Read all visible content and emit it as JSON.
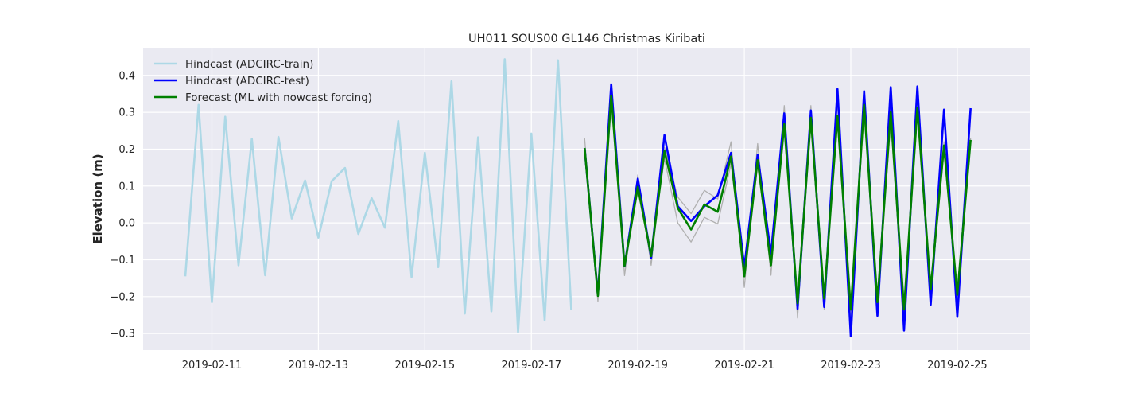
{
  "chart_data": {
    "type": "line",
    "title": "UH011 SOUS00 GL146 Christmas Kiribati",
    "xlabel": "",
    "ylabel": "Elevation (m)",
    "x_unit": "days",
    "xlim": [
      "2019-02-09 17:00",
      "2019-02-26 09:00"
    ],
    "ylim": [
      -0.345,
      0.475
    ],
    "x_tick_labels": [
      "2019-02-11",
      "2019-02-13",
      "2019-02-15",
      "2019-02-17",
      "2019-02-19",
      "2019-02-21",
      "2019-02-23",
      "2019-02-25"
    ],
    "y_ticks": [
      -0.3,
      -0.2,
      -0.1,
      0.0,
      0.1,
      0.2,
      0.3,
      0.4
    ],
    "y_tick_labels": [
      "−0.3",
      "−0.2",
      "−0.1",
      "0.0",
      "0.1",
      "0.2",
      "0.3",
      "0.4"
    ],
    "grid": true,
    "legend_placement": "top-left",
    "background": "#eaeaf2",
    "series": [
      {
        "name": "Hindcast (ADCIRC-train)",
        "color": "#add8e6",
        "x": [
          "2019-02-10 12:00",
          "2019-02-10 18:00",
          "2019-02-11 00:00",
          "2019-02-11 06:00",
          "2019-02-11 12:00",
          "2019-02-11 18:00",
          "2019-02-12 00:00",
          "2019-02-12 06:00",
          "2019-02-12 12:00",
          "2019-02-12 18:00",
          "2019-02-13 00:00",
          "2019-02-13 06:00",
          "2019-02-13 12:00",
          "2019-02-13 18:00",
          "2019-02-14 00:00",
          "2019-02-14 06:00",
          "2019-02-14 12:00",
          "2019-02-14 18:00",
          "2019-02-15 00:00",
          "2019-02-15 06:00",
          "2019-02-15 12:00",
          "2019-02-15 18:00",
          "2019-02-16 00:00",
          "2019-02-16 06:00",
          "2019-02-16 12:00",
          "2019-02-16 18:00",
          "2019-02-17 00:00",
          "2019-02-17 06:00",
          "2019-02-17 12:00",
          "2019-02-17 18:00"
        ],
        "values": [
          -0.145,
          0.32,
          -0.215,
          0.288,
          -0.115,
          0.228,
          -0.142,
          0.233,
          0.012,
          0.115,
          -0.04,
          0.113,
          0.149,
          -0.03,
          0.067,
          -0.013,
          0.276,
          -0.147,
          0.19,
          -0.12,
          0.384,
          -0.246,
          0.232,
          -0.24,
          0.444,
          -0.296,
          0.242,
          -0.264,
          0.441,
          -0.237
        ]
      },
      {
        "name": "Hindcast (ADCIRC-test)",
        "color": "#0000ff",
        "x": [
          "2019-02-18 00:00",
          "2019-02-18 06:00",
          "2019-02-18 12:00",
          "2019-02-18 18:00",
          "2019-02-19 00:00",
          "2019-02-19 06:00",
          "2019-02-19 12:00",
          "2019-02-19 18:00",
          "2019-02-20 00:00",
          "2019-02-20 06:00",
          "2019-02-20 12:00",
          "2019-02-20 18:00",
          "2019-02-21 00:00",
          "2019-02-21 06:00",
          "2019-02-21 12:00",
          "2019-02-21 18:00",
          "2019-02-22 00:00",
          "2019-02-22 06:00",
          "2019-02-22 12:00",
          "2019-02-22 18:00",
          "2019-02-23 00:00",
          "2019-02-23 06:00",
          "2019-02-23 12:00",
          "2019-02-23 18:00",
          "2019-02-24 00:00",
          "2019-02-24 06:00",
          "2019-02-24 12:00",
          "2019-02-24 18:00",
          "2019-02-25 00:00",
          "2019-02-25 06:00"
        ],
        "values": [
          0.203,
          -0.195,
          0.376,
          -0.118,
          0.12,
          -0.095,
          0.238,
          0.045,
          0.005,
          0.045,
          0.075,
          0.19,
          -0.12,
          0.185,
          -0.085,
          0.297,
          -0.233,
          0.305,
          -0.228,
          0.363,
          -0.308,
          0.357,
          -0.252,
          0.368,
          -0.292,
          0.37,
          -0.222,
          0.307,
          -0.255,
          0.311
        ]
      },
      {
        "name": "",
        "color": "#b0b0b0",
        "x": [
          "2019-02-18 00:00",
          "2019-02-18 06:00",
          "2019-02-18 12:00",
          "2019-02-18 18:00",
          "2019-02-19 00:00",
          "2019-02-19 06:00",
          "2019-02-19 12:00",
          "2019-02-19 18:00",
          "2019-02-20 00:00",
          "2019-02-20 06:00",
          "2019-02-20 12:00",
          "2019-02-20 18:00",
          "2019-02-21 00:00",
          "2019-02-21 06:00",
          "2019-02-21 12:00",
          "2019-02-21 18:00",
          "2019-02-22 00:00",
          "2019-02-22 06:00",
          "2019-02-22 12:00",
          "2019-02-22 18:00",
          "2019-02-23 00:00",
          "2019-02-23 06:00",
          "2019-02-23 12:00",
          "2019-02-23 18:00",
          "2019-02-24 00:00",
          "2019-02-24 06:00",
          "2019-02-24 12:00",
          "2019-02-24 18:00",
          "2019-02-25 00:00",
          "2019-02-25 06:00"
        ],
        "values": [
          0.23,
          -0.213,
          0.36,
          -0.143,
          0.13,
          -0.115,
          0.205,
          0.07,
          0.025,
          0.088,
          0.065,
          0.22,
          -0.175,
          0.215,
          -0.142,
          0.318,
          -0.258,
          0.318,
          -0.235,
          0.33,
          -0.265,
          0.33,
          -0.225,
          0.33,
          -0.265,
          0.33,
          -0.2,
          0.22,
          -0.22,
          0.23
        ]
      },
      {
        "name": "",
        "color": "#b0b0b0",
        "x": [
          "2019-02-18 00:00",
          "2019-02-18 06:00",
          "2019-02-18 12:00",
          "2019-02-18 18:00",
          "2019-02-19 00:00",
          "2019-02-19 06:00",
          "2019-02-19 12:00",
          "2019-02-19 18:00",
          "2019-02-20 00:00",
          "2019-02-20 06:00",
          "2019-02-20 12:00",
          "2019-02-20 18:00",
          "2019-02-21 00:00",
          "2019-02-21 06:00",
          "2019-02-21 12:00",
          "2019-02-21 18:00",
          "2019-02-22 00:00",
          "2019-02-22 06:00",
          "2019-02-22 12:00",
          "2019-02-22 18:00",
          "2019-02-23 00:00",
          "2019-02-23 06:00",
          "2019-02-23 12:00",
          "2019-02-23 18:00",
          "2019-02-24 00:00",
          "2019-02-24 06:00",
          "2019-02-24 12:00",
          "2019-02-24 18:00",
          "2019-02-25 00:00",
          "2019-02-25 06:00"
        ],
        "values": [
          0.19,
          -0.2,
          0.34,
          -0.105,
          0.085,
          -0.08,
          0.175,
          0.0,
          -0.052,
          0.015,
          -0.003,
          0.16,
          -0.13,
          0.155,
          -0.11,
          0.25,
          -0.215,
          0.265,
          -0.205,
          0.27,
          -0.24,
          0.3,
          -0.2,
          0.27,
          -0.235,
          0.29,
          -0.17,
          0.19,
          -0.19,
          0.22
        ]
      },
      {
        "name": "Forecast (ML with nowcast forcing)",
        "color": "#008000",
        "x": [
          "2019-02-18 00:00",
          "2019-02-18 06:00",
          "2019-02-18 12:00",
          "2019-02-18 18:00",
          "2019-02-19 00:00",
          "2019-02-19 06:00",
          "2019-02-19 12:00",
          "2019-02-19 18:00",
          "2019-02-20 00:00",
          "2019-02-20 06:00",
          "2019-02-20 12:00",
          "2019-02-20 18:00",
          "2019-02-21 00:00",
          "2019-02-21 06:00",
          "2019-02-21 12:00",
          "2019-02-21 18:00",
          "2019-02-22 00:00",
          "2019-02-22 06:00",
          "2019-02-22 12:00",
          "2019-02-22 18:00",
          "2019-02-23 00:00",
          "2019-02-23 06:00",
          "2019-02-23 12:00",
          "2019-02-23 18:00",
          "2019-02-24 00:00",
          "2019-02-24 06:00",
          "2019-02-24 12:00",
          "2019-02-24 18:00",
          "2019-02-25 00:00",
          "2019-02-25 06:00"
        ],
        "values": [
          0.203,
          -0.198,
          0.345,
          -0.117,
          0.098,
          -0.09,
          0.195,
          0.04,
          -0.018,
          0.05,
          0.03,
          0.18,
          -0.145,
          0.17,
          -0.115,
          0.268,
          -0.218,
          0.285,
          -0.205,
          0.29,
          -0.235,
          0.32,
          -0.215,
          0.3,
          -0.235,
          0.312,
          -0.18,
          0.21,
          -0.195,
          0.225
        ]
      }
    ]
  }
}
